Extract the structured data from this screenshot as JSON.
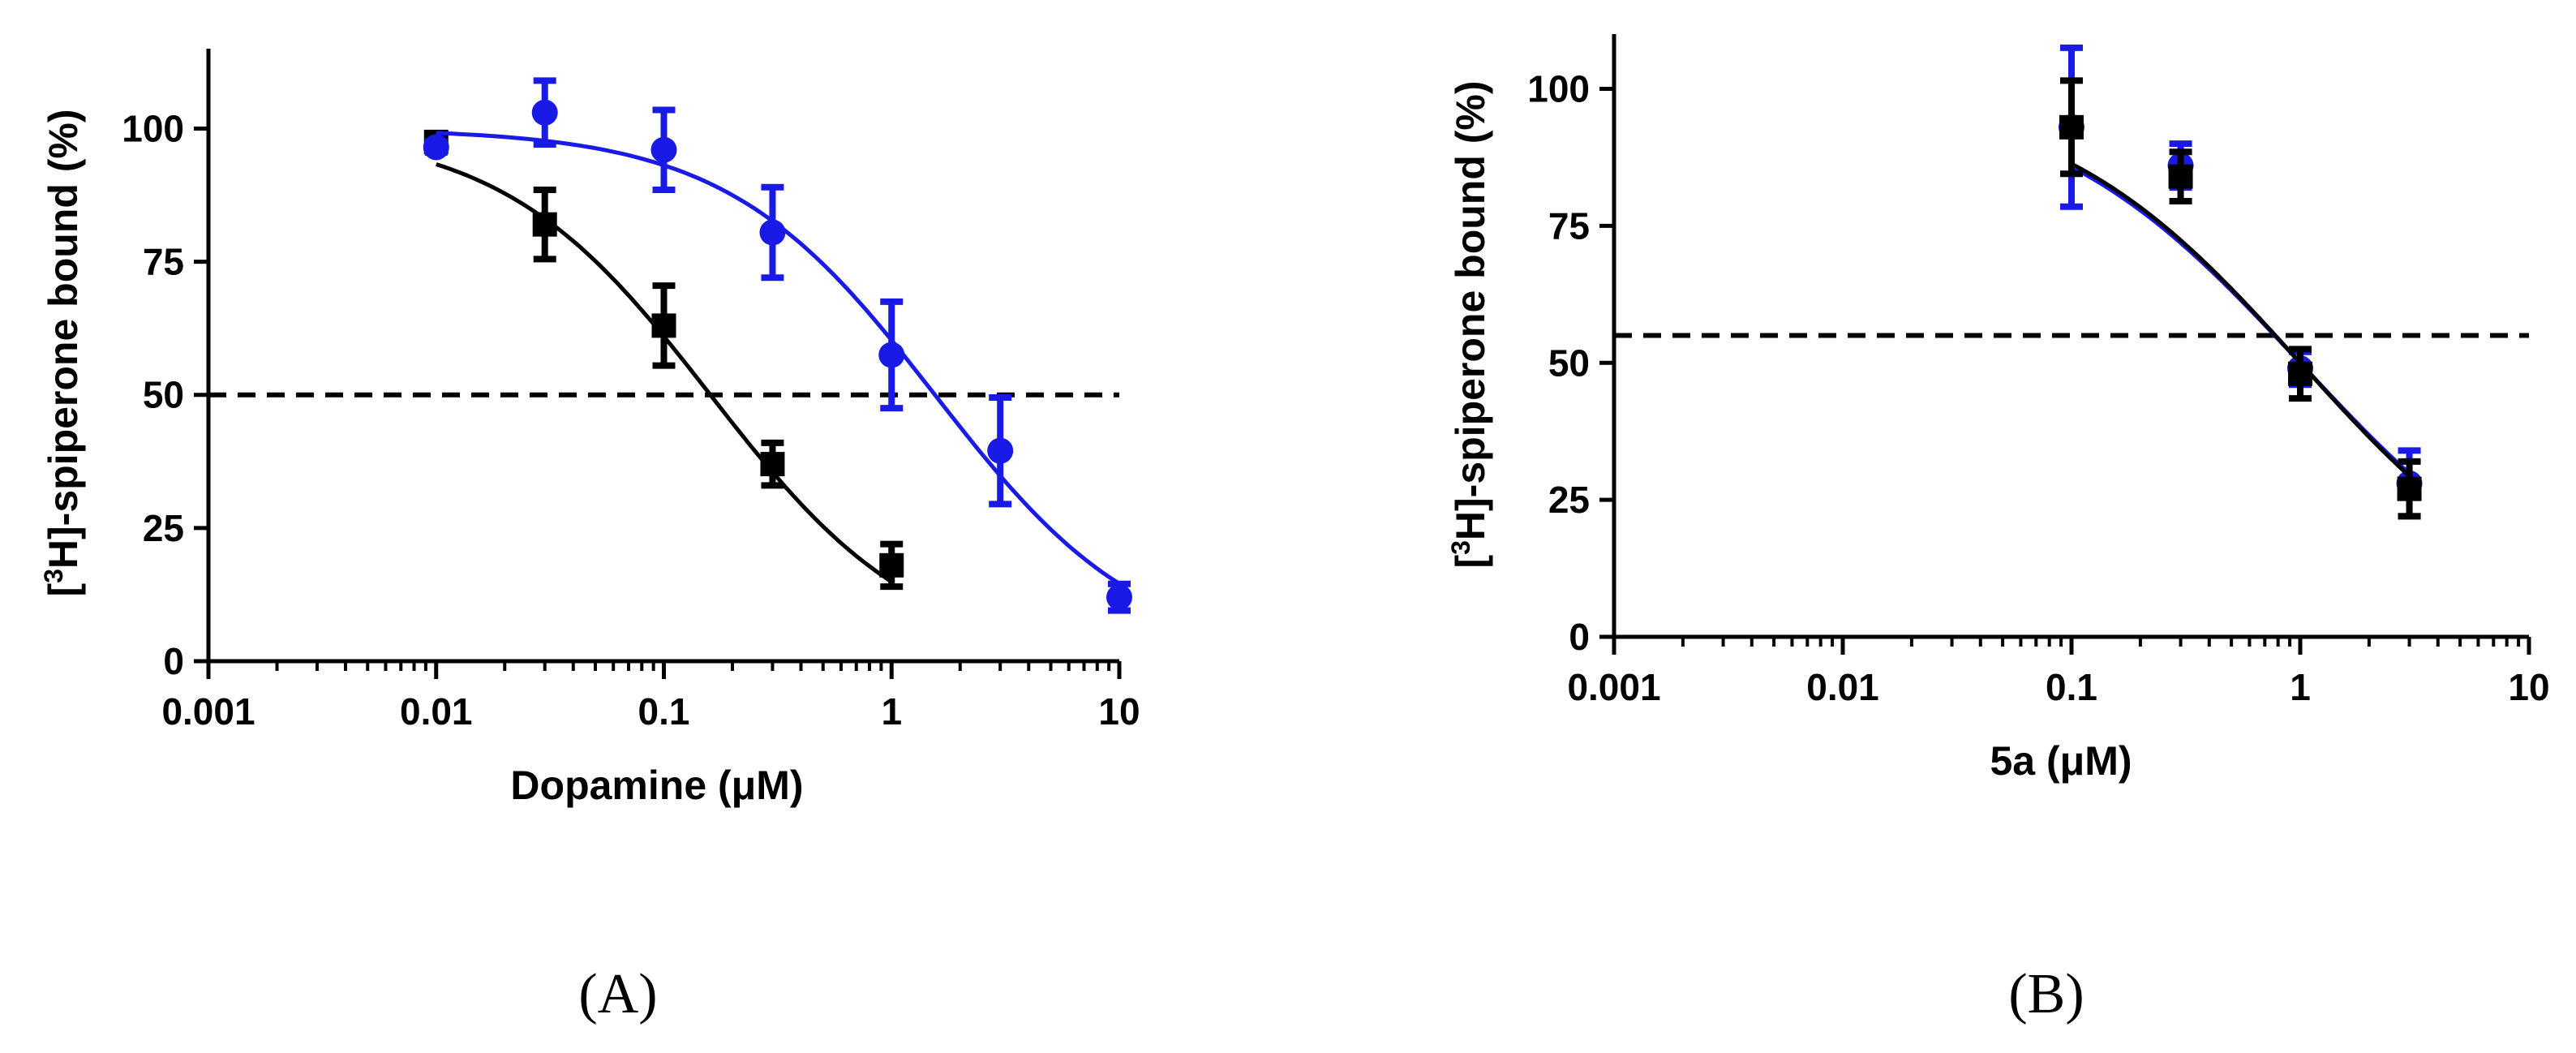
{
  "chart_data": [
    {
      "type": "scatter",
      "panel_label": "(A)",
      "xlabel": "Dopamine (μM)",
      "ylabel_sup": "3",
      "ylabel_pre": "[",
      "ylabel_post": "H]-spiperone bound (%)",
      "xscale": "log",
      "xlim": [
        0.001,
        10
      ],
      "ylim": [
        0,
        115
      ],
      "xticks": [
        "0.001",
        "0.01",
        "0.1",
        "1",
        "10"
      ],
      "xtick_values": [
        0.001,
        0.01,
        0.1,
        1,
        10
      ],
      "yticks": [
        "0",
        "25",
        "50",
        "75",
        "100"
      ],
      "ytick_values": [
        0,
        25,
        50,
        75,
        100
      ],
      "reference_line": 50,
      "series": [
        {
          "name": "black",
          "color": "#000000",
          "marker": "square",
          "x": [
            0.01,
            0.03,
            0.1,
            0.3,
            1
          ],
          "y": [
            97.5,
            82,
            63,
            37,
            18
          ],
          "err": [
            1.5,
            6.5,
            7.5,
            4,
            4
          ],
          "fit": {
            "top": 100,
            "bottom": 0,
            "ic50": 0.16,
            "hill": 0.95
          }
        },
        {
          "name": "blue",
          "color": "#1a1ae6",
          "marker": "circle",
          "x": [
            0.01,
            0.03,
            0.1,
            0.3,
            1,
            3,
            10
          ],
          "y": [
            96.5,
            103,
            96,
            80.5,
            57.5,
            39.5,
            12
          ],
          "err": [
            1,
            6,
            7.5,
            8.5,
            10,
            10,
            2.5
          ],
          "fit": {
            "top": 100,
            "bottom": 0,
            "ic50": 1.55,
            "hill": 0.95
          }
        }
      ]
    },
    {
      "type": "scatter",
      "panel_label": "(B)",
      "xlabel": "5a (μM)",
      "ylabel_sup": "3",
      "ylabel_pre": "[",
      "ylabel_post": "H]-spiperone bound (%)",
      "xscale": "log",
      "xlim": [
        0.001,
        10
      ],
      "ylim": [
        0,
        110
      ],
      "xticks": [
        "0.001",
        "0.01",
        "0.1",
        "1",
        "10"
      ],
      "xtick_values": [
        0.001,
        0.01,
        0.1,
        1,
        10
      ],
      "yticks": [
        "0",
        "25",
        "50",
        "75",
        "100"
      ],
      "ytick_values": [
        0,
        25,
        50,
        75,
        100
      ],
      "reference_line": 55,
      "series": [
        {
          "name": "blue",
          "color": "#1a1ae6",
          "marker": "circle",
          "x": [
            0.1,
            0.3,
            1,
            3
          ],
          "y": [
            93,
            86,
            49,
            28
          ],
          "err": [
            14.5,
            4,
            3,
            6
          ],
          "fit": {
            "top": 100,
            "bottom": 0,
            "ic50": 1.0,
            "hill": 0.78
          }
        },
        {
          "name": "black",
          "color": "#000000",
          "marker": "square",
          "x": [
            0.1,
            0.3,
            1,
            3
          ],
          "y": [
            93,
            84,
            48,
            27
          ],
          "err": [
            8.5,
            4.5,
            4.5,
            5
          ],
          "fit": {
            "top": 100,
            "bottom": 0,
            "ic50": 1.0,
            "hill": 0.8
          }
        }
      ]
    }
  ]
}
